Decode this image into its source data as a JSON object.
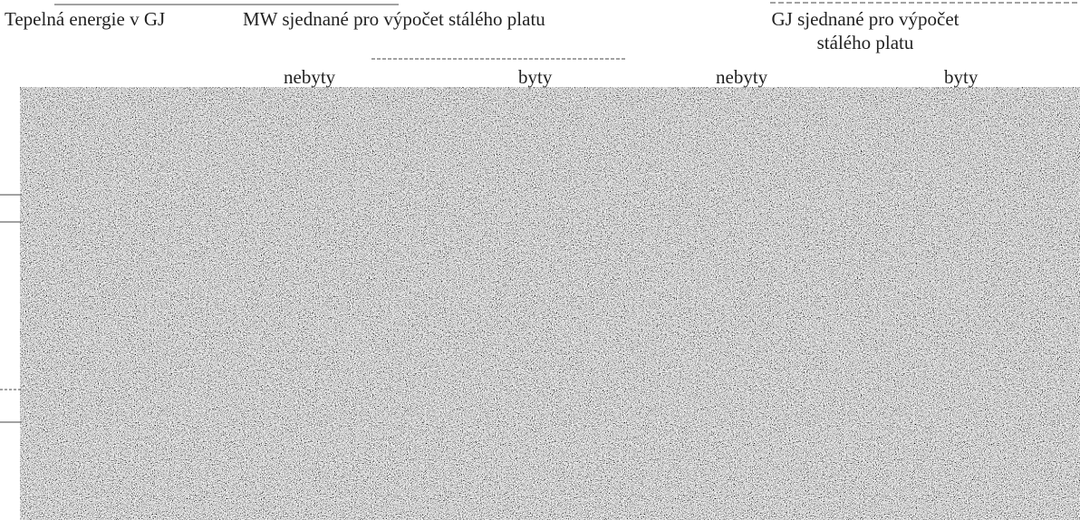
{
  "table": {
    "columns": [
      {
        "title": "Tepelná energie v GJ"
      },
      {
        "title": "MW sjednané pro výpočet stálého platu",
        "subcolumns": [
          "nebyty",
          "byty"
        ]
      },
      {
        "title": "GJ sjednané pro výpočet stálého platu",
        "subcolumns": [
          "nebyty",
          "byty"
        ]
      }
    ]
  }
}
